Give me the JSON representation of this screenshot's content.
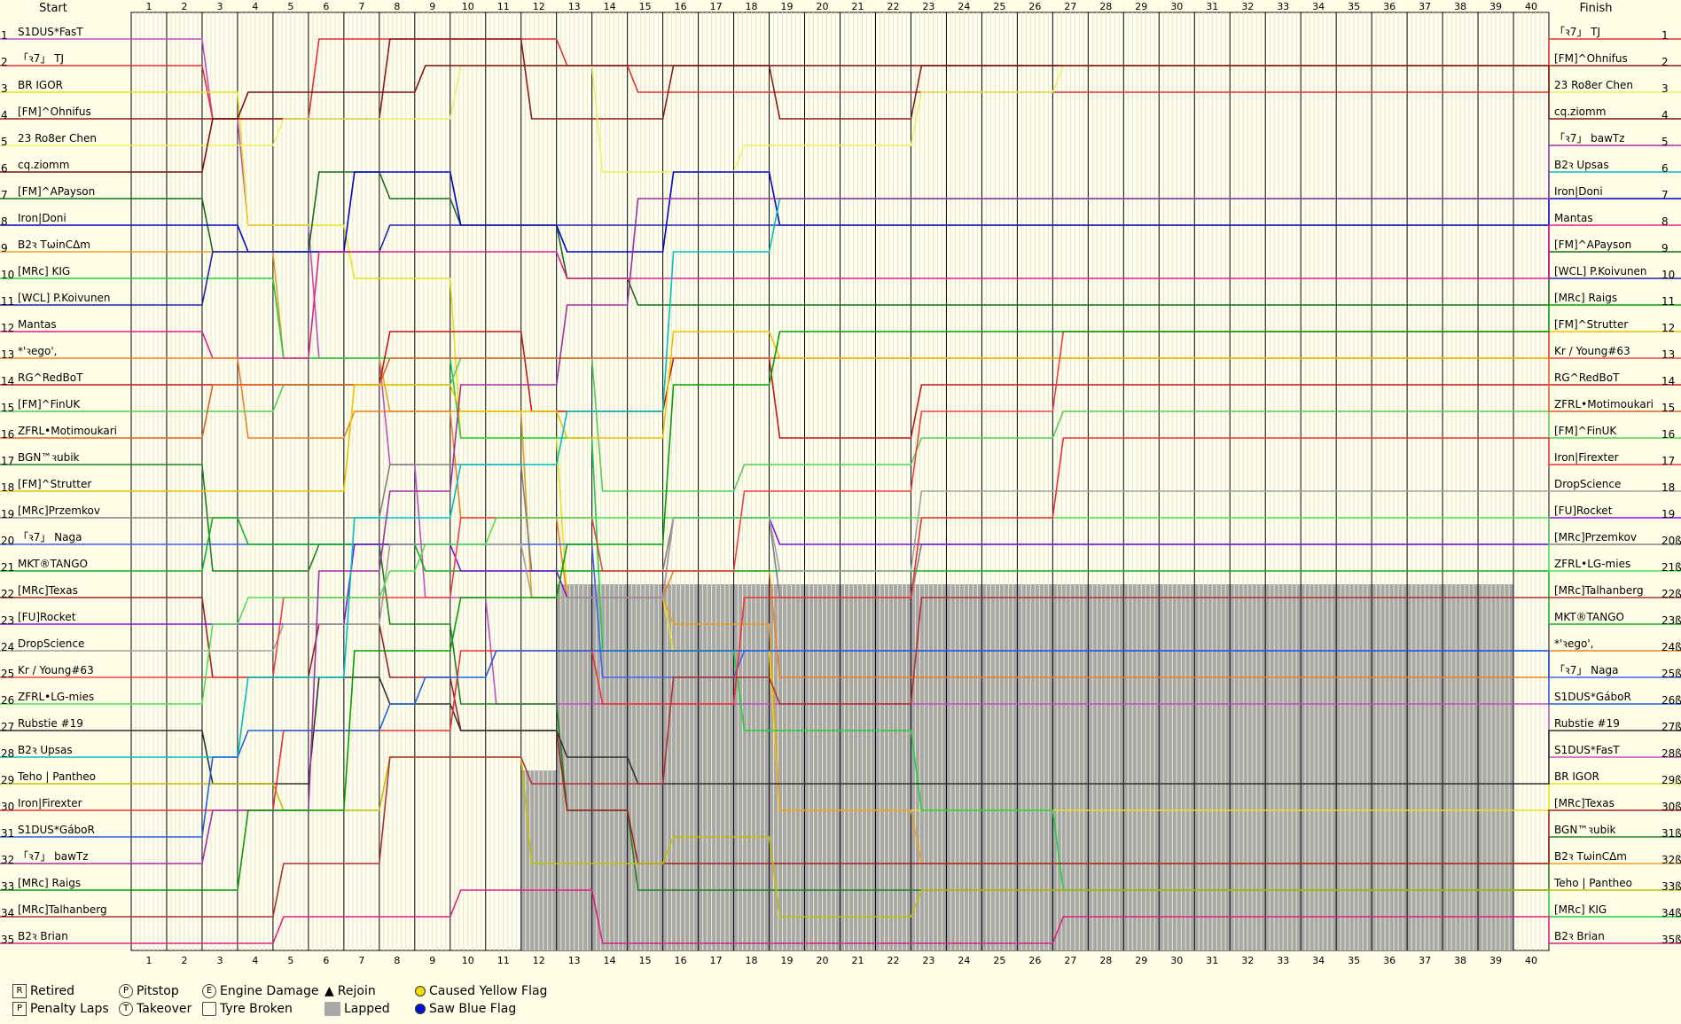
{
  "chart_data": {
    "type": "line",
    "header_start": "Start",
    "header_finish": "Finish",
    "laps": 40,
    "positions": 35,
    "start_grid": [
      "S1DUS*FasT",
      "「ꝛ7」 TJ",
      "BR IGOR",
      "[FM]^Ohnifus",
      "23 Ro8er Chen",
      "cq.ziomm",
      "[FM]^APayson",
      "Iron|Doni",
      "B2ꝛ TωinCΔm",
      "[MRc] KIG",
      "[WCL] P.Koivunen",
      "Mantas",
      "*'ꝛego',",
      "RG^RedBoT",
      "[FM]^FinUK",
      "ZFRL•Motimoukari",
      "BGN™ꝛubik",
      "[FM]^Strutter",
      "[MRc]Przemkov",
      "「ꝛ7」 Naga",
      "MKT®TANGO",
      "[MRc]Texas",
      "[FU]Rocket",
      "DropScience",
      "Kr / Young#63",
      "ZFRL•LG-mies",
      "Rubstie #19",
      "B2ꝛ Upsas",
      "Teho | Pantheo",
      "Iron|Firexter",
      "S1DUS*GáboR",
      "「ꝛ7」 bawTz",
      "[MRc] Raigs",
      "[MRc]Talhanberg",
      "B2ꝛ Brian"
    ],
    "finish_order": [
      "「ꝛ7」 TJ",
      "[FM]^Ohnifus",
      "23 Ro8er Chen",
      "cq.ziomm",
      "「ꝛ7」 bawTz",
      "B2ꝛ Upsas",
      "Iron|Doni",
      "Mantas",
      "[FM]^APayson",
      "[WCL] P.Koivunen",
      "[MRc] Raigs",
      "[FM]^Strutter",
      "Kr / Young#63",
      "RG^RedBoT",
      "ZFRL•Motimoukari",
      "[FM]^FinUK",
      "Iron|Firexter",
      "DropScience",
      "[FU]Rocket",
      "[MRc]Przemkov",
      "ZFRL•LG-mies",
      "[MRc]Talhanberg",
      "MKT®TANGO",
      "*'ꝛego',",
      "「ꝛ7」 Naga",
      "S1DUS*GáboR",
      "Rubstie #19",
      "S1DUS*FasT",
      "BR IGOR",
      "[MRc]Texas",
      "BGN™ꝛubik",
      "B2ꝛ TωinCΔm",
      "Teho | Pantheo",
      "[MRc] KIG",
      "B2ꝛ Brian"
    ],
    "finish_positions": [
      "1",
      "2",
      "3",
      "4",
      "5",
      "6",
      "7",
      "8",
      "9",
      "10",
      "11",
      "12",
      "13",
      "14",
      "15",
      "16",
      "17",
      "18",
      "19",
      "20ß",
      "21ß",
      "22ß",
      "23ß",
      "24ß",
      "25ß",
      "26ß",
      "27ß",
      "28ß",
      "29ß",
      "30ß",
      "31ß",
      "32ß",
      "33ß",
      "34ß",
      "35ß"
    ],
    "start_colors": [
      "#c050c0",
      "#e03030",
      "#e8e020",
      "#8b1a1a",
      "#f0f060",
      "#7a1010",
      "#1a6a1a",
      "#0000cc",
      "#e8a020",
      "#20d040",
      "#2020b0",
      "#e02090",
      "#f08020",
      "#c01818",
      "#50d050",
      "#e06020",
      "#208020",
      "#f0c000",
      "#808080",
      "#4060f0",
      "#10b020",
      "#a02020",
      "#8010e0",
      "#a0a0a0",
      "#f04040",
      "#50e050",
      "#303030",
      "#00c0c0",
      "#c0c000",
      "#f03030",
      "#2060e0",
      "#a030a0",
      "#00a000",
      "#b03030",
      "#e02080"
    ],
    "lapped": [
      0,
      0,
      0,
      0,
      0,
      0,
      0,
      0,
      0,
      0,
      0,
      7,
      14,
      14,
      14,
      14,
      14,
      14,
      14,
      14,
      14,
      14,
      14,
      14,
      14,
      14,
      14,
      14,
      14,
      14,
      14,
      14,
      14,
      14,
      14,
      14,
      14,
      14,
      14,
      0
    ]
  },
  "legend": {
    "retired": "Retired",
    "penalty_laps": "Penalty Laps",
    "pitstop": "Pitstop",
    "takeover": "Takeover",
    "engine_damage": "Engine Damage",
    "tyre_broken": "Tyre Broken",
    "rejoin": "Rejoin",
    "lapped": "Lapped",
    "caused_yellow": "Caused Yellow Flag",
    "saw_blue": "Saw Blue Flag",
    "sym_r": "R",
    "sym_p": "P",
    "sym_e": "E",
    "sym_t": "T"
  }
}
